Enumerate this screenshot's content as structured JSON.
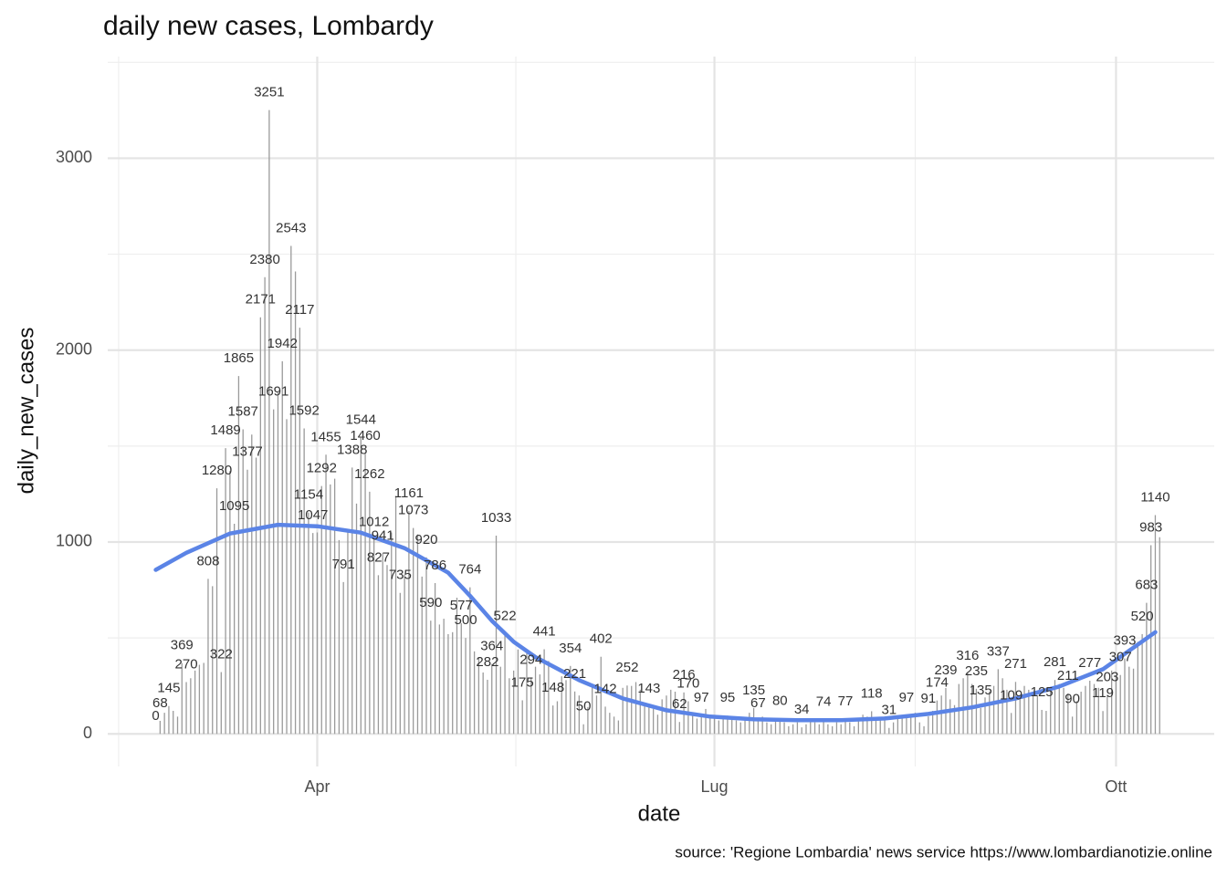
{
  "chart_data": {
    "type": "bar",
    "title": "daily new cases, Lombardy",
    "xlabel": "date",
    "ylabel": "daily_new_cases",
    "caption": "source: 'Regione Lombardia' news service https://www.lombardianotizie.online",
    "color": "#9a9a9a",
    "grid": true,
    "xlim": [
      -48,
      205.5
    ],
    "ylim": [
      -170,
      3530
    ],
    "xticks": [
      {
        "value": 0,
        "label": "Apr"
      },
      {
        "value": 91,
        "label": "Lug"
      },
      {
        "value": 183,
        "label": "Ott"
      }
    ],
    "xminorticks": [
      -45.5,
      45.5,
      137
    ],
    "yticks": [
      0,
      1000,
      2000,
      3000
    ],
    "yminorticks": [
      500,
      1500,
      2500,
      3500
    ],
    "x": [
      -37,
      -36,
      -35,
      -34,
      -33,
      -32,
      -31,
      -30,
      -29,
      -28,
      -27,
      -26,
      -25,
      -24,
      -23,
      -22,
      -21,
      -20,
      -19,
      -18,
      -17,
      -16,
      -15,
      -14,
      -13,
      -12,
      -11,
      -10,
      -9,
      -8,
      -7,
      -6,
      -5,
      -4,
      -3,
      -2,
      -1,
      0,
      1,
      2,
      3,
      4,
      5,
      6,
      7,
      8,
      9,
      10,
      11,
      12,
      13,
      14,
      15,
      16,
      17,
      18,
      19,
      20,
      21,
      22,
      23,
      24,
      25,
      26,
      27,
      28,
      29,
      30,
      31,
      32,
      33,
      34,
      35,
      36,
      37,
      38,
      39,
      40,
      41,
      42,
      43,
      44,
      45,
      46,
      47,
      48,
      49,
      50,
      51,
      52,
      53,
      54,
      55,
      56,
      57,
      58,
      59,
      60,
      61,
      62,
      63,
      64,
      65,
      66,
      67,
      68,
      69,
      70,
      71,
      72,
      73,
      74,
      75,
      76,
      77,
      78,
      79,
      80,
      81,
      82,
      83,
      84,
      85,
      86,
      87,
      88,
      89,
      90,
      91,
      92,
      93,
      94,
      95,
      96,
      97,
      98,
      99,
      100,
      101,
      102,
      103,
      104,
      105,
      106,
      107,
      108,
      109,
      110,
      111,
      112,
      113,
      114,
      115,
      116,
      117,
      118,
      119,
      120,
      121,
      122,
      123,
      124,
      125,
      126,
      127,
      128,
      129,
      130,
      131,
      132,
      133,
      134,
      135,
      136,
      137,
      138,
      139,
      140,
      141,
      142,
      143,
      144,
      145,
      146,
      147,
      148,
      149,
      150,
      151,
      152,
      153,
      154,
      155,
      156,
      157,
      158,
      159,
      160,
      161,
      162,
      163,
      164,
      165,
      166,
      167,
      168,
      169,
      170,
      171,
      172,
      173,
      174,
      175,
      176,
      177,
      178,
      179,
      180,
      181,
      182,
      183,
      184,
      185,
      186,
      187,
      188,
      189,
      190,
      191,
      192,
      193
    ],
    "values": [
      0,
      68,
      110,
      145,
      120,
      90,
      369,
      270,
      290,
      330,
      360,
      370,
      808,
      770,
      1280,
      322,
      1489,
      1370,
      1095,
      1865,
      1587,
      1377,
      1560,
      1440,
      2171,
      2380,
      3251,
      1691,
      1780,
      1942,
      1640,
      2543,
      2410,
      2117,
      1592,
      1154,
      1047,
      1050,
      1292,
      1455,
      1300,
      1330,
      1010,
      791,
      1050,
      1388,
      1200,
      1544,
      1460,
      1262,
      1012,
      827,
      941,
      880,
      1050,
      1240,
      735,
      830,
      1161,
      1073,
      1040,
      820,
      920,
      590,
      786,
      570,
      600,
      520,
      530,
      710,
      577,
      500,
      764,
      430,
      400,
      320,
      282,
      364,
      1033,
      350,
      522,
      290,
      330,
      440,
      175,
      420,
      294,
      350,
      310,
      441,
      380,
      148,
      170,
      300,
      280,
      354,
      221,
      200,
      50,
      140,
      260,
      200,
      402,
      142,
      110,
      90,
      70,
      240,
      252,
      250,
      270,
      230,
      160,
      143,
      130,
      100,
      180,
      200,
      230,
      220,
      62,
      216,
      170,
      110,
      80,
      97,
      130,
      90,
      80,
      70,
      90,
      95,
      80,
      70,
      60,
      80,
      110,
      135,
      67,
      90,
      60,
      50,
      70,
      80,
      60,
      40,
      50,
      60,
      34,
      50,
      70,
      60,
      50,
      74,
      50,
      40,
      60,
      50,
      77,
      60,
      40,
      70,
      100,
      90,
      118,
      70,
      80,
      90,
      31,
      60,
      80,
      90,
      97,
      100,
      110,
      60,
      40,
      91,
      120,
      174,
      200,
      239,
      180,
      150,
      260,
      290,
      316,
      260,
      235,
      135,
      190,
      220,
      250,
      337,
      290,
      230,
      109,
      271,
      200,
      250,
      230,
      220,
      200,
      125,
      120,
      230,
      281,
      260,
      240,
      211,
      90,
      170,
      220,
      250,
      277,
      260,
      240,
      119,
      203,
      330,
      300,
      307,
      393,
      350,
      340,
      480,
      520,
      683,
      983,
      1140,
      1025
    ],
    "value_labels": [
      "0",
      "68",
      null,
      "145",
      null,
      null,
      "369",
      "270",
      null,
      null,
      null,
      null,
      "808",
      null,
      "1280",
      "322",
      "1489",
      null,
      "1095",
      "1865",
      "1587",
      "1377",
      null,
      null,
      "2171",
      "2380",
      "3251",
      "1691",
      null,
      "1942",
      null,
      "2543",
      null,
      "2117",
      "1592",
      "1154",
      "1047",
      null,
      "1292",
      "1455",
      null,
      null,
      null,
      "791",
      null,
      "1388",
      null,
      "1544",
      "1460",
      "1262",
      "1012",
      "827",
      "941",
      null,
      null,
      null,
      "735",
      null,
      "1161",
      "1073",
      null,
      null,
      "920",
      "590",
      "786",
      null,
      null,
      null,
      null,
      null,
      "577",
      "500",
      "764",
      null,
      null,
      null,
      "282",
      "364",
      "1033",
      null,
      "522",
      null,
      null,
      null,
      "175",
      null,
      "294",
      null,
      null,
      "441",
      null,
      "148",
      null,
      null,
      null,
      "354",
      "221",
      null,
      "50",
      null,
      null,
      null,
      "402",
      "142",
      null,
      null,
      null,
      null,
      "252",
      null,
      null,
      null,
      null,
      "143",
      null,
      null,
      null,
      null,
      null,
      null,
      "62",
      "216",
      "170",
      null,
      null,
      "97",
      null,
      null,
      null,
      null,
      null,
      "95",
      null,
      null,
      null,
      null,
      null,
      "135",
      "67",
      null,
      null,
      null,
      null,
      "80",
      null,
      null,
      null,
      null,
      "34",
      null,
      null,
      null,
      null,
      "74",
      null,
      null,
      null,
      null,
      "77",
      null,
      null,
      null,
      null,
      null,
      "118",
      null,
      null,
      null,
      "31",
      null,
      null,
      null,
      "97",
      null,
      null,
      null,
      null,
      "91",
      null,
      "174",
      null,
      "239",
      null,
      null,
      null,
      null,
      "316",
      null,
      "235",
      "135",
      null,
      null,
      null,
      "337",
      null,
      null,
      "109",
      "271",
      null,
      null,
      null,
      null,
      null,
      "125",
      null,
      null,
      "281",
      null,
      null,
      "211",
      "90",
      null,
      null,
      null,
      "277",
      null,
      null,
      "119",
      "203",
      null,
      null,
      "307",
      "393",
      null,
      null,
      null,
      "520",
      "683",
      "983",
      "1140",
      null
    ],
    "trend": {
      "color": "#5b84e6",
      "x": [
        -37,
        -30,
        -20,
        -9,
        0,
        10,
        20,
        30,
        35,
        40,
        45,
        50,
        60,
        70,
        80,
        90,
        100,
        110,
        120,
        130,
        140,
        150,
        160,
        170,
        180,
        192
      ],
      "values": [
        855,
        944,
        1044,
        1090,
        1082,
        1049,
        968,
        840,
        720,
        590,
        480,
        400,
        280,
        185,
        123,
        90,
        76,
        71,
        71,
        80,
        104,
        138,
        185,
        247,
        337,
        530
      ]
    }
  }
}
